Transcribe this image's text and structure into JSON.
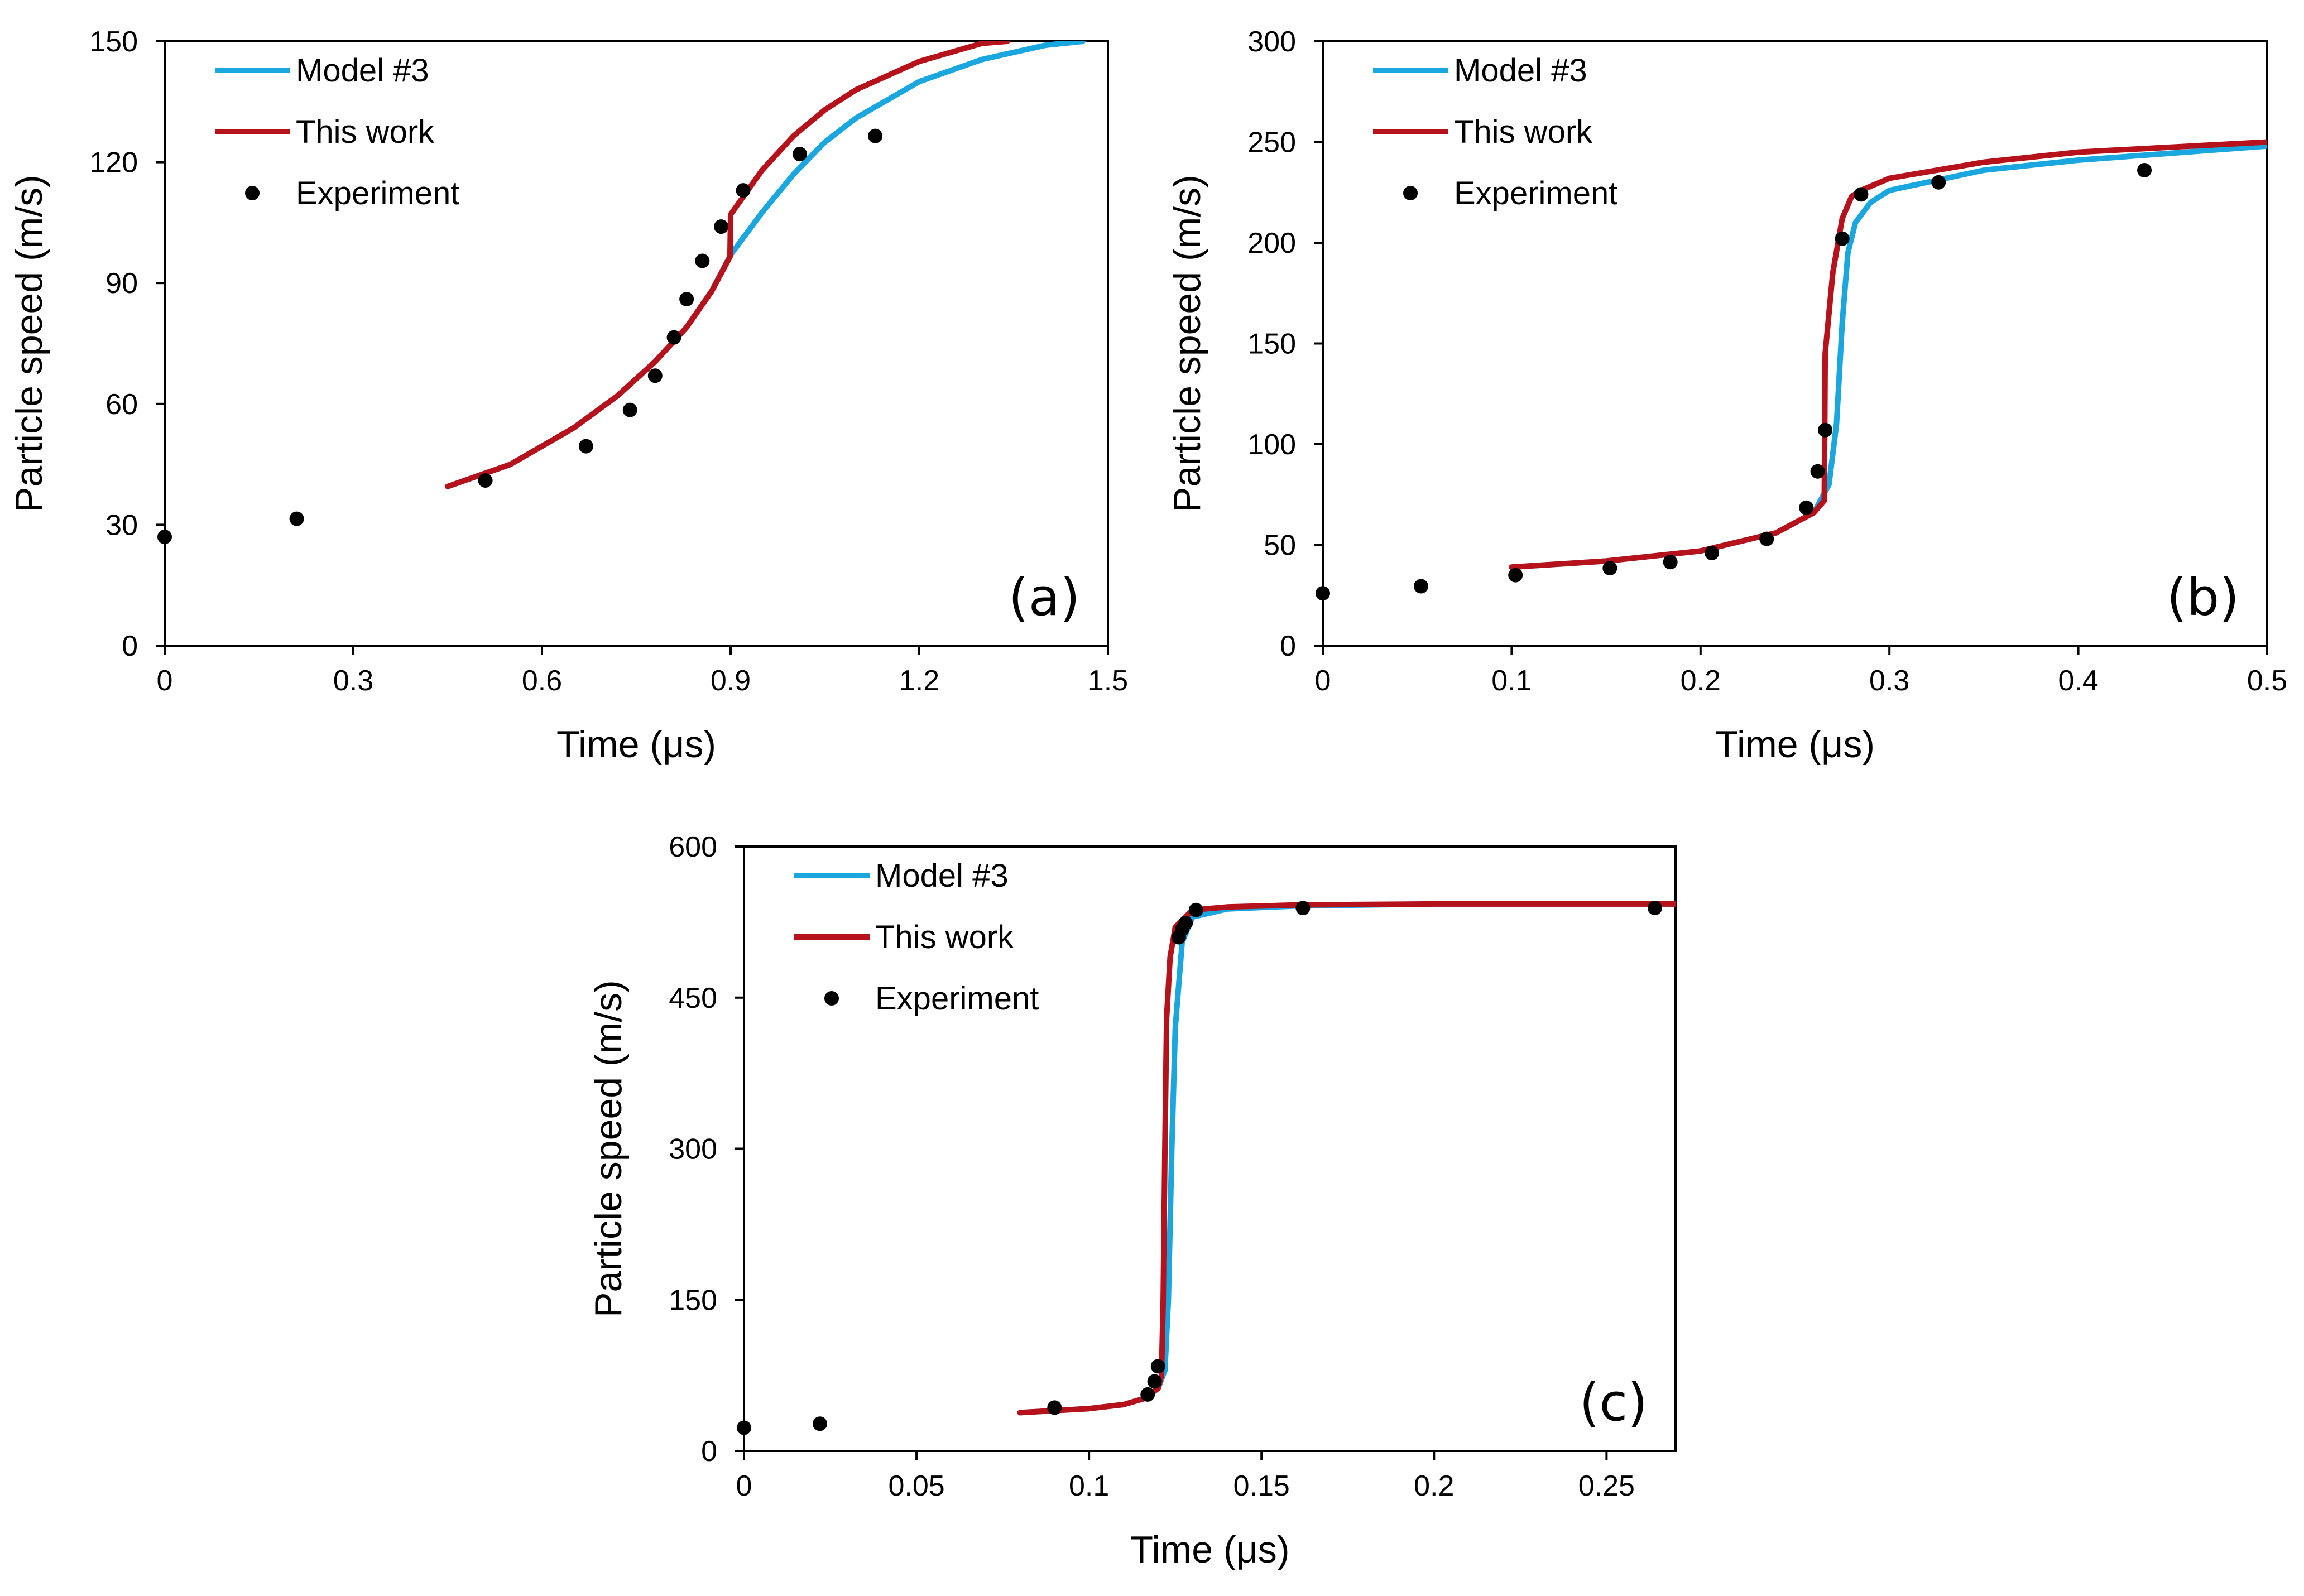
{
  "colors": {
    "model3": "#1aa7e0",
    "thiswork": "#b5121b",
    "experiment": "#000000",
    "axes": "#000000"
  },
  "chart_data": [
    {
      "id": "a",
      "type": "line",
      "panel_label": "(a)",
      "xlabel": "Time (μs)",
      "ylabel": "Particle speed (m/s)",
      "xlim": [
        0,
        1.5
      ],
      "ylim": [
        0,
        150
      ],
      "xticks": [
        0,
        0.3,
        0.6,
        0.9,
        1.2,
        1.5
      ],
      "xtick_labels": [
        "0",
        "0.3",
        "0.6",
        "0.9",
        "1.2",
        "1.5"
      ],
      "yticks": [
        0,
        30,
        60,
        90,
        120,
        150
      ],
      "ytick_labels": [
        "0",
        "30",
        "60",
        "90",
        "120",
        "150"
      ],
      "legend_position": "top-left",
      "series": [
        {
          "name": "Model #3",
          "kind": "line",
          "color_key": "model3",
          "x": [
            0.45,
            0.55,
            0.65,
            0.72,
            0.78,
            0.83,
            0.87,
            0.9,
            0.95,
            1.0,
            1.05,
            1.1,
            1.2,
            1.3,
            1.4,
            1.46
          ],
          "y": [
            39.5,
            45,
            54,
            62,
            70.5,
            79,
            88,
            97,
            107.5,
            117,
            125,
            131,
            140,
            145.5,
            149,
            150
          ]
        },
        {
          "name": "This work",
          "kind": "line",
          "color_key": "thiswork",
          "x": [
            0.45,
            0.55,
            0.65,
            0.72,
            0.78,
            0.83,
            0.87,
            0.899,
            0.9,
            0.95,
            1.0,
            1.05,
            1.1,
            1.2,
            1.3,
            1.34
          ],
          "y": [
            39.5,
            45,
            54,
            62,
            70.5,
            79,
            88,
            96.5,
            107,
            118,
            126.5,
            133,
            138,
            145,
            149.5,
            150
          ]
        },
        {
          "name": "Experiment",
          "kind": "scatter",
          "color_key": "experiment",
          "x": [
            0,
            0.21,
            0.51,
            0.67,
            0.74,
            0.78,
            0.81,
            0.83,
            0.855,
            0.885,
            0.92,
            1.01,
            1.13
          ],
          "y": [
            27,
            31.5,
            41,
            49.5,
            58.5,
            67,
            76.5,
            86,
            95.5,
            104,
            113,
            122,
            126.5
          ]
        }
      ]
    },
    {
      "id": "b",
      "type": "line",
      "panel_label": "(b)",
      "xlabel": "Time (μs)",
      "ylabel": "Particle speed (m/s)",
      "xlim": [
        0,
        0.5
      ],
      "ylim": [
        0,
        300
      ],
      "xticks": [
        0,
        0.1,
        0.2,
        0.3,
        0.4,
        0.5
      ],
      "xtick_labels": [
        "0",
        "0.1",
        "0.2",
        "0.3",
        "0.4",
        "0.5"
      ],
      "yticks": [
        0,
        50,
        100,
        150,
        200,
        250,
        300
      ],
      "ytick_labels": [
        "0",
        "50",
        "100",
        "150",
        "200",
        "250",
        "300"
      ],
      "legend_position": "top-left",
      "series": [
        {
          "name": "Model #3",
          "kind": "line",
          "color_key": "model3",
          "x": [
            0.1,
            0.15,
            0.2,
            0.24,
            0.26,
            0.268,
            0.272,
            0.275,
            0.278,
            0.282,
            0.29,
            0.3,
            0.35,
            0.4,
            0.5
          ],
          "y": [
            39,
            42,
            47,
            56,
            66,
            80,
            110,
            160,
            195,
            210,
            220,
            226,
            236,
            241,
            248
          ]
        },
        {
          "name": "This work",
          "kind": "line",
          "color_key": "thiswork",
          "x": [
            0.1,
            0.15,
            0.2,
            0.24,
            0.26,
            0.2655,
            0.266,
            0.27,
            0.275,
            0.28,
            0.285,
            0.3,
            0.35,
            0.4,
            0.5
          ],
          "y": [
            39,
            42,
            47,
            56,
            66,
            72,
            145,
            185,
            212,
            223,
            226,
            232,
            240,
            245,
            250
          ]
        },
        {
          "name": "Experiment",
          "kind": "scatter",
          "color_key": "experiment",
          "x": [
            0,
            0.052,
            0.102,
            0.152,
            0.184,
            0.206,
            0.235,
            0.256,
            0.262,
            0.266,
            0.275,
            0.285,
            0.326,
            0.435
          ],
          "y": [
            26,
            29.5,
            35,
            38.5,
            41.5,
            46,
            53,
            68.5,
            86.5,
            107,
            202,
            224,
            230,
            236
          ]
        }
      ]
    },
    {
      "id": "c",
      "type": "line",
      "panel_label": "(c)",
      "xlabel": "Time (μs)",
      "ylabel": "Particle speed (m/s)",
      "xlim": [
        0,
        0.27
      ],
      "ylim": [
        0,
        600
      ],
      "xticks": [
        0,
        0.05,
        0.1,
        0.15,
        0.2,
        0.25
      ],
      "xtick_labels": [
        "0",
        "0.05",
        "0.1",
        "0.15",
        "0.2",
        "0.25"
      ],
      "yticks": [
        0,
        150,
        300,
        450,
        600
      ],
      "ytick_labels": [
        "0",
        "150",
        "300",
        "450",
        "600"
      ],
      "legend_position": "top-left",
      "series": [
        {
          "name": "Model #3",
          "kind": "line",
          "color_key": "model3",
          "x": [
            0.08,
            0.1,
            0.11,
            0.116,
            0.12,
            0.122,
            0.123,
            0.124,
            0.125,
            0.127,
            0.13,
            0.14,
            0.16,
            0.2,
            0.27
          ],
          "y": [
            38,
            42,
            46,
            52,
            62,
            80,
            150,
            300,
            420,
            505,
            530,
            538,
            541,
            543,
            543
          ]
        },
        {
          "name": "This work",
          "kind": "line",
          "color_key": "thiswork",
          "x": [
            0.08,
            0.1,
            0.11,
            0.116,
            0.12,
            0.121,
            0.1215,
            0.122,
            0.1225,
            0.1235,
            0.125,
            0.13,
            0.14,
            0.16,
            0.2,
            0.27
          ],
          "y": [
            38,
            42,
            46,
            52,
            62,
            75,
            150,
            300,
            430,
            490,
            520,
            537,
            540,
            542,
            543,
            543
          ]
        },
        {
          "name": "Experiment",
          "kind": "scatter",
          "color_key": "experiment",
          "x": [
            0,
            0.022,
            0.09,
            0.117,
            0.119,
            0.12,
            0.126,
            0.127,
            0.128,
            0.131,
            0.162,
            0.264
          ],
          "y": [
            23,
            27,
            43,
            56,
            69,
            84,
            510,
            518,
            524,
            537,
            539,
            539
          ]
        }
      ]
    }
  ]
}
